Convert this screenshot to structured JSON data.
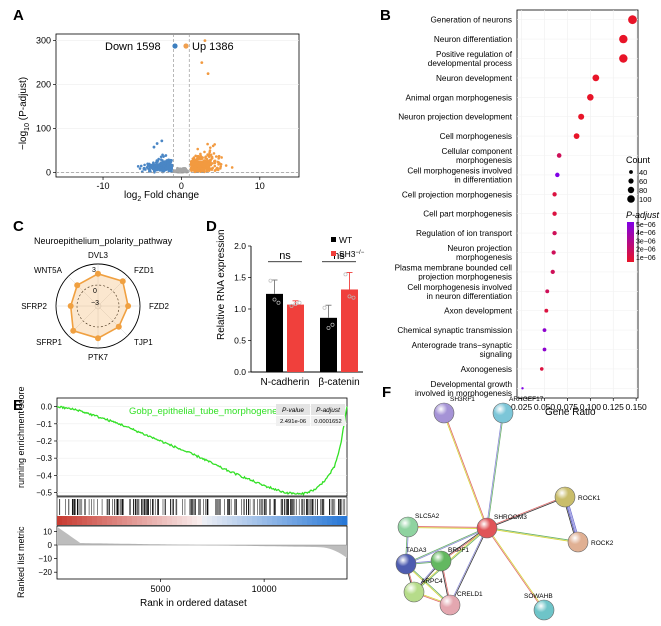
{
  "panels": {
    "A": "A",
    "B": "B",
    "C": "C",
    "D": "D",
    "E": "E",
    "F": "F"
  },
  "chart_data": [
    {
      "panel": "A",
      "type": "scatter",
      "xlabel_main": "log",
      "xlabel_sub": "2",
      "xlabel_rest": " Fold change",
      "ylabel_prefix": "−log",
      "ylabel_sub": "10",
      "ylabel_rest": " (P-adjust)",
      "x_ticks": [
        -10,
        0,
        10
      ],
      "y_ticks": [
        0,
        100,
        200,
        300
      ],
      "xlim": [
        -16,
        15
      ],
      "ylim": [
        -10,
        315
      ],
      "threshold_x": [
        -1,
        1
      ],
      "threshold_y": 0,
      "legend": [
        {
          "label": "Down 1598",
          "color": "#3d7fbf"
        },
        {
          "label": "Up 1386",
          "color": "#f0a050"
        }
      ],
      "colors": {
        "down": "#4a86c5",
        "up": "#f29a40",
        "ns": "#a6a6a6"
      }
    },
    {
      "panel": "B",
      "type": "scatter",
      "xlabel": "Gene Ratio",
      "x_ticks": [
        "0.025",
        "0.050",
        "0.075",
        "0.100",
        "0.125",
        "0.150"
      ],
      "x_tick_values": [
        0.025,
        0.05,
        0.075,
        0.1,
        0.125,
        0.15
      ],
      "xlim": [
        0.02,
        0.152
      ],
      "terms": [
        {
          "label": [
            "Generation of neurons"
          ],
          "ratio": 0.146,
          "padj": 1e-06,
          "count": 100
        },
        {
          "label": [
            "Neuron differentiation"
          ],
          "ratio": 0.136,
          "padj": 1e-06,
          "count": 95
        },
        {
          "label": [
            "Positive regulation of",
            "developmental process"
          ],
          "ratio": 0.136,
          "padj": 1e-06,
          "count": 95
        },
        {
          "label": [
            "Neuron development"
          ],
          "ratio": 0.106,
          "padj": 1e-06,
          "count": 75
        },
        {
          "label": [
            "Animal organ morphogenesis"
          ],
          "ratio": 0.1,
          "padj": 1e-06,
          "count": 72
        },
        {
          "label": [
            "Neuron projection development"
          ],
          "ratio": 0.09,
          "padj": 1e-06,
          "count": 65
        },
        {
          "label": [
            "Cell morphogenesis"
          ],
          "ratio": 0.085,
          "padj": 1e-06,
          "count": 62
        },
        {
          "label": [
            "Cellular component",
            "morphogenesis"
          ],
          "ratio": 0.066,
          "padj": 2e-06,
          "count": 48
        },
        {
          "label": [
            "Cell morphogenesis involved",
            "in differentiation"
          ],
          "ratio": 0.064,
          "padj": 5e-06,
          "count": 46
        },
        {
          "label": [
            "Cell projection morphogenesis"
          ],
          "ratio": 0.061,
          "padj": 1.5e-06,
          "count": 44
        },
        {
          "label": [
            "Cell part morphogenesis"
          ],
          "ratio": 0.061,
          "padj": 1.5e-06,
          "count": 44
        },
        {
          "label": [
            "Regulation of ion transport"
          ],
          "ratio": 0.061,
          "padj": 2e-06,
          "count": 44
        },
        {
          "label": [
            "Neuron projection",
            "morphogenesis"
          ],
          "ratio": 0.06,
          "padj": 2e-06,
          "count": 43
        },
        {
          "label": [
            "Plasma membrane bounded cell",
            "projection morphogenesis"
          ],
          "ratio": 0.059,
          "padj": 2e-06,
          "count": 43
        },
        {
          "label": [
            "Cell morphogenesis involved",
            "in neuron differentiation"
          ],
          "ratio": 0.053,
          "padj": 2e-06,
          "count": 39
        },
        {
          "label": [
            "Axon development"
          ],
          "ratio": 0.052,
          "padj": 1.5e-06,
          "count": 38
        },
        {
          "label": [
            "Chemical synaptic transmission"
          ],
          "ratio": 0.05,
          "padj": 4.5e-06,
          "count": 37
        },
        {
          "label": [
            "Anterograde trans−synaptic",
            "signaling"
          ],
          "ratio": 0.05,
          "padj": 4.5e-06,
          "count": 37
        },
        {
          "label": [
            "Axonogenesis"
          ],
          "ratio": 0.047,
          "padj": 1.5e-06,
          "count": 35
        },
        {
          "label": [
            "Developmental growth",
            "involved in morphogenesis"
          ],
          "ratio": 0.026,
          "padj": 5e-06,
          "count": 20
        }
      ],
      "count_legend": {
        "title": "Count",
        "values": [
          "40",
          "60",
          "80",
          "100"
        ]
      },
      "padj_legend": {
        "title": "P-adjust",
        "values": [
          "5e−06",
          "4e−06",
          "3e−06",
          "2e−06",
          "1e−06"
        ]
      }
    },
    {
      "panel": "C",
      "type": "radar",
      "title": "Neuroepithelium_polarity_pathway",
      "axes": [
        "DVL3",
        "FZD1",
        "FZD2",
        "TJP1",
        "PTK7",
        "SFRP1",
        "SFRP2",
        "WNT5A"
      ],
      "values": [
        1.6,
        2.0,
        1.3,
        1.2,
        1.6,
        2.0,
        0.9,
        1.2
      ],
      "ring_labels": [
        "3",
        "0",
        "−3"
      ],
      "rmin": -3,
      "rmax": 3,
      "color": "#f0a040"
    },
    {
      "panel": "D",
      "type": "bar",
      "ylabel": "Relative RNA expression",
      "categories": [
        "N-cadherin",
        "β-catenin"
      ],
      "series": [
        {
          "name": "WT",
          "values": [
            1.24,
            0.86
          ],
          "err": [
            0.22,
            0.2
          ],
          "color": "#000000",
          "points": [
            [
              1.45,
              1.15,
              1.1
            ],
            [
              1.02,
              0.7,
              0.75
            ]
          ]
        },
        {
          "name": "SH3",
          "values": [
            1.07,
            1.31
          ],
          "err": [
            0.06,
            0.27
          ],
          "color": "#f0403c",
          "points": [
            [
              1.05,
              1.08,
              1.1
            ],
            [
              1.55,
              1.2,
              1.18
            ]
          ]
        }
      ],
      "legend_sup": "−/−",
      "sig": [
        "ns",
        "ns"
      ],
      "y_ticks": [
        "0.0",
        "0.5",
        "1.0",
        "1.5",
        "2.0"
      ],
      "ylim": [
        0,
        2.0
      ]
    },
    {
      "panel": "E",
      "type": "line",
      "title": "Gobp_epithelial_tube_morphogenesis",
      "ylabel_top": "running enrichment score",
      "ylabel_bottom": "Ranked list metric",
      "xlabel": "Rank in ordered dataset",
      "x_ticks": [
        "5000",
        "10000"
      ],
      "es_ticks": [
        "0.0",
        "−0.1",
        "−0.2",
        "−0.3",
        "−0.4",
        "−0.5"
      ],
      "metric_ticks": [
        "10",
        "0",
        "−10",
        "−20"
      ],
      "xlim": [
        0,
        14000
      ],
      "es_curve_x": [
        0,
        1000,
        2000,
        3000,
        4000,
        5000,
        6000,
        7000,
        8000,
        9000,
        10000,
        11000,
        11800,
        12500,
        13000,
        13400,
        13700,
        14000
      ],
      "es_curve_y": [
        0.0,
        -0.02,
        -0.06,
        -0.1,
        -0.15,
        -0.2,
        -0.25,
        -0.3,
        -0.36,
        -0.41,
        -0.46,
        -0.5,
        -0.51,
        -0.48,
        -0.42,
        -0.35,
        -0.22,
        0.0
      ],
      "stats_table": {
        "headers": [
          "P-value",
          "P-adjust"
        ],
        "values": [
          "2.491e-06",
          "0.0001652"
        ]
      },
      "color": "#33e026"
    },
    {
      "panel": "F",
      "type": "network",
      "nodes": [
        {
          "id": "SH3RF1",
          "color": "#a593d6"
        },
        {
          "id": "ARHGEF17",
          "color": "#7cc6d8"
        },
        {
          "id": "ROCK1",
          "color": "#c9bd6a"
        },
        {
          "id": "ROCK2",
          "color": "#e0b093"
        },
        {
          "id": "SLC5A2",
          "color": "#8fd3a0"
        },
        {
          "id": "SHROOM3",
          "color": "#e05458"
        },
        {
          "id": "TADA3",
          "color": "#4e5cb0"
        },
        {
          "id": "BRPF1",
          "color": "#63b860"
        },
        {
          "id": "ARPC4",
          "color": "#b6dc8a"
        },
        {
          "id": "CRELD1",
          "color": "#e4a7b0"
        },
        {
          "id": "SOWAHB",
          "color": "#6ec4c8"
        }
      ],
      "edges": [
        [
          "SHROOM3",
          "SH3RF1"
        ],
        [
          "SHROOM3",
          "ARHGEF17"
        ],
        [
          "SHROOM3",
          "ROCK1"
        ],
        [
          "SHROOM3",
          "ROCK2"
        ],
        [
          "ROCK1",
          "ROCK2"
        ],
        [
          "SHROOM3",
          "SLC5A2"
        ],
        [
          "SHROOM3",
          "TADA3"
        ],
        [
          "SHROOM3",
          "BRPF1"
        ],
        [
          "SHROOM3",
          "ARPC4"
        ],
        [
          "SHROOM3",
          "CRELD1"
        ],
        [
          "SHROOM3",
          "SOWAHB"
        ],
        [
          "TADA3",
          "BRPF1"
        ],
        [
          "TADA3",
          "ARPC4"
        ],
        [
          "TADA3",
          "CRELD1"
        ],
        [
          "BRPF1",
          "ARPC4"
        ],
        [
          "ARPC4",
          "CRELD1"
        ],
        [
          "SLC5A2",
          "TADA3"
        ],
        [
          "BRPF1",
          "CRELD1"
        ]
      ]
    }
  ]
}
